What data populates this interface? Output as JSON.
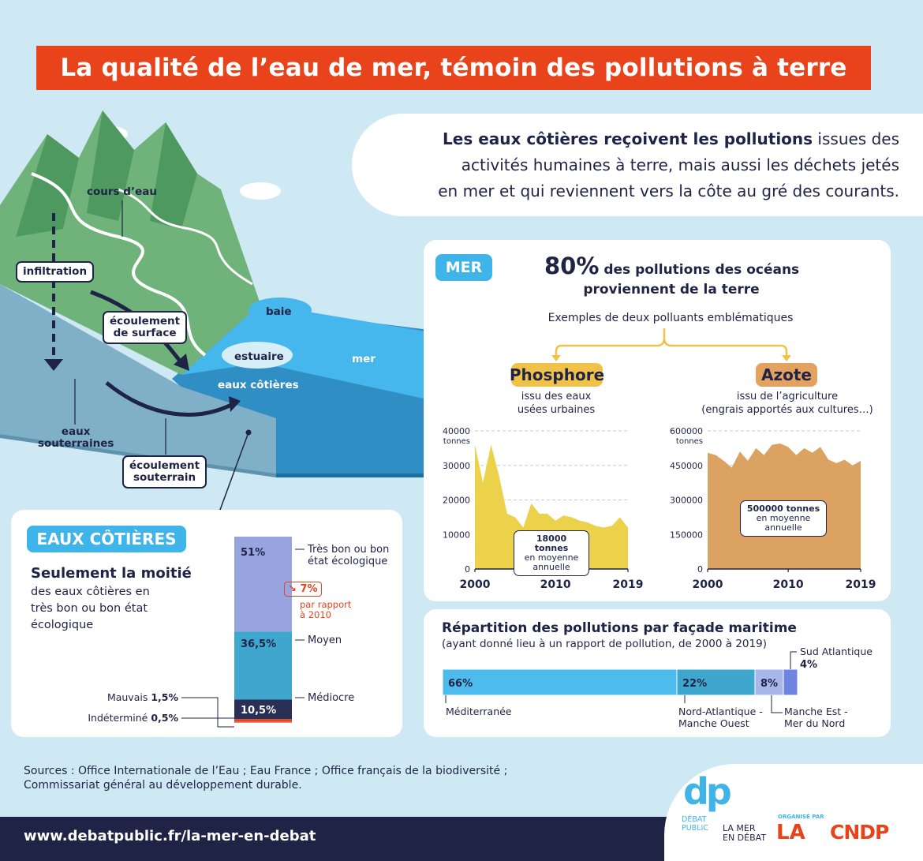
{
  "title": "La qualité de l’eau de mer, témoin des pollutions à terre",
  "intro": {
    "bold": "Les eaux côtières reçoivent les pollutions",
    "rest1": " issues des",
    "line2": "activités humaines à terre, mais aussi les déchets jetés",
    "line3": "en mer et qui reviennent vers la côte au gré des courants."
  },
  "diagram": {
    "cours_eau": "cours d’eau",
    "infiltration": "infiltration",
    "ecoulement_surface": [
      "écoulement",
      "de surface"
    ],
    "baie": "baie",
    "estuaire": "estuaire",
    "mer": "mer",
    "eaux_cotieres": "eaux côtières",
    "eaux_souterraines": [
      "eaux",
      "souterraines"
    ],
    "ecoulement_souterrain": [
      "écoulement",
      "souterrain"
    ]
  },
  "mer_panel": {
    "tag": "MER",
    "big": "80%",
    "headline1": " des pollutions des océans",
    "headline2": "proviennent de la terre",
    "examples": "Exemples de deux polluants emblématiques",
    "phosphore": {
      "tag": "Phosphore",
      "desc": [
        "issu des eaux",
        "usées urbaines"
      ],
      "unit": "tonnes",
      "callout": [
        "18000 tonnes",
        "en moyenne",
        "annuelle"
      ]
    },
    "azote": {
      "tag": "Azote",
      "desc": [
        "issu de l’agriculture",
        "(engrais apportés aux cultures…)"
      ],
      "unit": "tonnes",
      "callout": [
        "500000 tonnes",
        "en moyenne",
        "annuelle"
      ]
    }
  },
  "coastal_panel": {
    "tag": "EAUX CÔTIÈRES",
    "headline": "Seulement la moitié",
    "sub": [
      "des eaux côtières en",
      "très bon ou bon état",
      "écologique"
    ],
    "change_val": "7%",
    "change_arrow": "↘",
    "change_note": [
      "par rapport",
      "à 2010"
    ]
  },
  "facade_panel": {
    "title": "Répartition des pollutions par façade maritime",
    "subtitle": "(ayant donné lieu à un rapport de pollution, de 2000 à 2019)"
  },
  "sources": [
    "Sources : Office Internationale de l’Eau ; Eau France ; Office français de la biodiversité ;",
    "Commissariat général au développement durable."
  ],
  "footer": {
    "url": "www.debatpublic.fr/la-mer-en-debat",
    "logo_dp": "dp",
    "logo_debat": [
      "DÉBAT",
      "PUBLIC"
    ],
    "logo_mer": [
      "LA MER",
      "EN DÉBAT"
    ],
    "organise": "ORGANISÉ PAR",
    "logo_cndp": "CNDP",
    "logo_la": "LA"
  },
  "colors": {
    "accent": "#e8431b",
    "navy": "#1f2345",
    "sky": "#3fb4e8",
    "phosphore": "#ecd24a",
    "azote": "#dca261"
  },
  "chart_data": [
    {
      "type": "area",
      "name": "Phosphore",
      "x": [
        2000,
        2001,
        2002,
        2003,
        2004,
        2005,
        2006,
        2007,
        2008,
        2009,
        2010,
        2011,
        2012,
        2013,
        2014,
        2015,
        2016,
        2017,
        2018,
        2019
      ],
      "values": [
        36000,
        25000,
        36000,
        27000,
        16000,
        15000,
        12000,
        19000,
        16000,
        16000,
        14000,
        15500,
        15000,
        14000,
        13500,
        12500,
        12000,
        12500,
        15000,
        12000
      ],
      "ylim": [
        0,
        40000
      ],
      "yticks": [
        0,
        10000,
        20000,
        30000,
        40000
      ],
      "xticks": [
        2000,
        2010,
        2019
      ],
      "ylabel": "tonnes"
    },
    {
      "type": "area",
      "name": "Azote",
      "x": [
        2000,
        2001,
        2002,
        2003,
        2004,
        2005,
        2006,
        2007,
        2008,
        2009,
        2010,
        2011,
        2012,
        2013,
        2014,
        2015,
        2016,
        2017,
        2018,
        2019
      ],
      "values": [
        505000,
        495000,
        470000,
        440000,
        510000,
        470000,
        525000,
        495000,
        540000,
        545000,
        530000,
        495000,
        525000,
        505000,
        530000,
        475000,
        460000,
        475000,
        450000,
        470000
      ],
      "ylim": [
        0,
        600000
      ],
      "yticks": [
        0,
        150000,
        300000,
        450000,
        600000
      ],
      "xticks": [
        2000,
        2010,
        2019
      ],
      "ylabel": "tonnes"
    },
    {
      "type": "bar",
      "name": "coastal_status",
      "categories": [
        "Très bon ou bon état écologique",
        "Moyen",
        "Médiocre",
        "Mauvais",
        "Indéterminé"
      ],
      "values": [
        51,
        36.5,
        10.5,
        1.5,
        0.5
      ],
      "labels": [
        "51%",
        "36,5%",
        "10,5%",
        "1,5%",
        "0,5%"
      ],
      "display": [
        "",
        "",
        "",
        "Mauvais ",
        "Indéterminé "
      ],
      "colors": [
        "#98a4e0",
        "#3fa7cd",
        "#2a2f55",
        "#e8431b",
        "#f08a70"
      ]
    },
    {
      "type": "bar",
      "name": "facades",
      "categories": [
        "Méditerranée",
        "Nord-Atlantique - Manche Ouest",
        "Manche Est - Mer du Nord",
        "Sud Atlantique"
      ],
      "label_lines": [
        [
          "Méditerranée"
        ],
        [
          "Nord-Atlantique -",
          "Manche Ouest"
        ],
        [
          "Manche Est -",
          "Mer du Nord"
        ],
        [
          "Sud Atlantique"
        ]
      ],
      "values": [
        66,
        22,
        8,
        4
      ],
      "labels": [
        "66%",
        "22%",
        "8%",
        "4%"
      ],
      "colors": [
        "#4dbcec",
        "#3fa7cd",
        "#a8b7ea",
        "#6f84e0"
      ]
    }
  ]
}
